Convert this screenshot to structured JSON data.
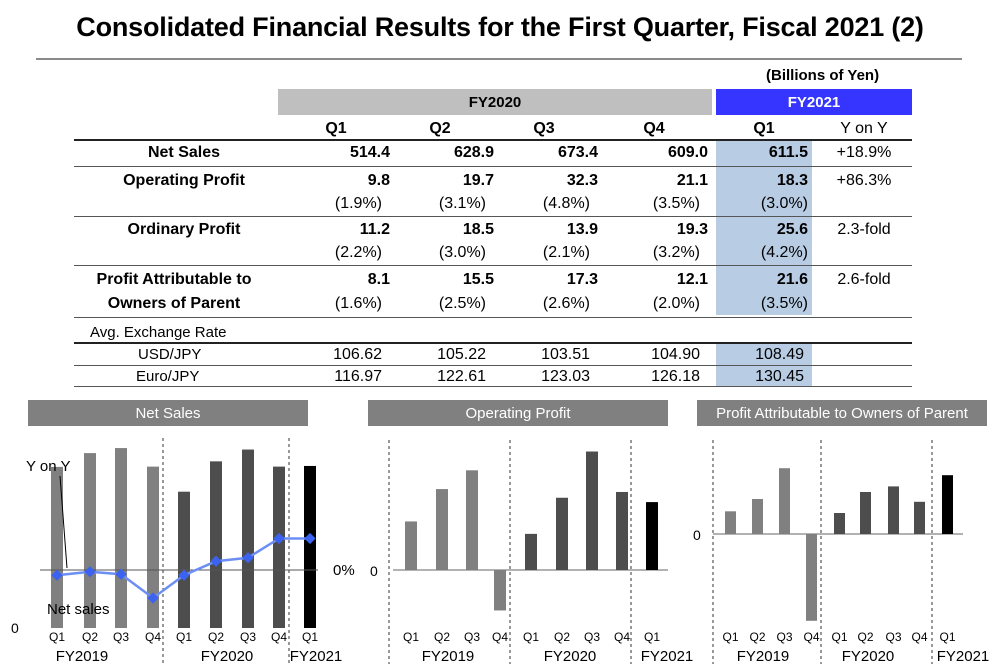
{
  "title": "Consolidated Financial Results for the First Quarter, Fiscal 2021 (2)",
  "units": "(Billions of Yen)",
  "table": {
    "fy2020_label": "FY2020",
    "fy2021_label": "FY2021",
    "col_q1": "Q1",
    "col_q2": "Q2",
    "col_q3": "Q3",
    "col_q4": "Q4",
    "col_fy21_q1": "Q1",
    "col_yoy": "Y on Y",
    "net_sales": {
      "label": "Net Sales",
      "q1": "514.4",
      "q2": "628.9",
      "q3": "673.4",
      "q4": "609.0",
      "fy21": "611.5",
      "yoy": "+18.9%"
    },
    "operating_profit": {
      "label": "Operating Profit",
      "q1": "9.8",
      "q2": "19.7",
      "q3": "32.3",
      "q4": "21.1",
      "fy21": "18.3",
      "yoy": "+86.3%",
      "p1": "(1.9%)",
      "p2": "(3.1%)",
      "p3": "(4.8%)",
      "p4": "(3.5%)",
      "pfy21": "(3.0%)"
    },
    "ordinary_profit": {
      "label": "Ordinary Profit",
      "q1": "11.2",
      "q2": "18.5",
      "q3": "13.9",
      "q4": "19.3",
      "fy21": "25.6",
      "yoy": "2.3-fold",
      "p1": "(2.2%)",
      "p2": "(3.0%)",
      "p3": "(2.1%)",
      "p4": "(3.2%)",
      "pfy21": "(4.2%)"
    },
    "profit_attr": {
      "label1": "Profit Attributable to",
      "label2": "Owners of Parent",
      "q1": "8.1",
      "q2": "15.5",
      "q3": "17.3",
      "q4": "12.1",
      "fy21": "21.6",
      "yoy": "2.6-fold",
      "p1": "(1.6%)",
      "p2": "(2.5%)",
      "p3": "(2.6%)",
      "p4": "(2.0%)",
      "pfy21": "(3.5%)"
    },
    "avg_rate_label": "Avg. Exchange Rate",
    "usd": {
      "label": "USD/JPY",
      "q1": "106.62",
      "q2": "105.22",
      "q3": "103.51",
      "q4": "104.90",
      "fy21": "108.49"
    },
    "euro": {
      "label": "Euro/JPY",
      "q1": "116.97",
      "q2": "122.61",
      "q3": "123.03",
      "q4": "126.18",
      "fy21": "130.45"
    }
  },
  "colors": {
    "fy2019_bar": "#808080",
    "fy2020_bar": "#4d4d4d",
    "fy2021_bar": "#000000",
    "yoy_line": "#6d8ff5",
    "yoy_marker": "#3c63f0",
    "fy2021_band": "#3535ff",
    "highlight": "#b8cce4"
  },
  "chart_data": [
    {
      "type": "bar",
      "title": "Net Sales",
      "quarter_labels": [
        "Q1",
        "Q2",
        "Q3",
        "Q4",
        "Q1",
        "Q2",
        "Q3",
        "Q4",
        "Q1"
      ],
      "groups": [
        "FY2019",
        "FY2020",
        "FY2021"
      ],
      "values": [
        608,
        660,
        679,
        609,
        514.4,
        628.9,
        673.4,
        609.0,
        611.5
      ],
      "zero_label": "0",
      "bar_label": "Net sales",
      "yoy_label": "Y on Y",
      "yoy_zero_label": "0%",
      "yoy_values": [
        -1.5,
        -0.5,
        -1.2,
        -8,
        -1.5,
        2.5,
        3.5,
        9,
        9
      ]
    },
    {
      "type": "bar",
      "title": "Operating Profit",
      "quarter_labels": [
        "Q1",
        "Q2",
        "Q3",
        "Q4",
        "Q1",
        "Q2",
        "Q3",
        "Q4",
        "Q1"
      ],
      "groups": [
        "FY2019",
        "FY2020",
        "FY2021"
      ],
      "values": [
        16.8,
        28.0,
        34.5,
        -14.0,
        12.5,
        25.0,
        41.0,
        27.0,
        23.5
      ],
      "zero_label": "0"
    },
    {
      "type": "bar",
      "title": "Profit Attributable to Owners of Parent",
      "quarter_labels": [
        "Q1",
        "Q2",
        "Q3",
        "Q4",
        "Q1",
        "Q2",
        "Q3",
        "Q4",
        "Q1"
      ],
      "groups": [
        "FY2019",
        "FY2020",
        "FY2021"
      ],
      "values": [
        8.1,
        12.5,
        23.5,
        -31.0,
        7.5,
        15.0,
        17.0,
        11.5,
        21.0
      ],
      "zero_label": "0"
    }
  ]
}
